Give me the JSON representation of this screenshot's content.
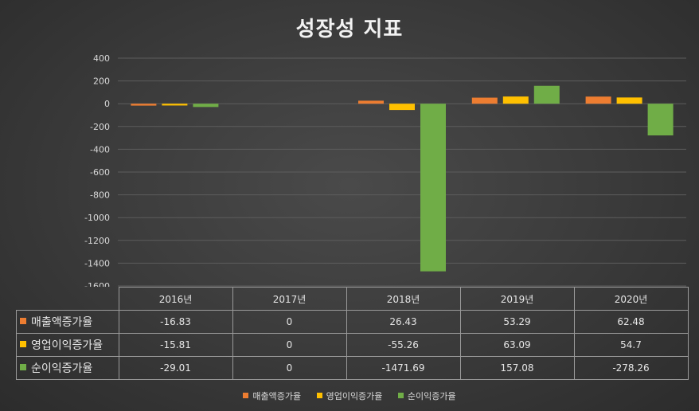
{
  "chart_data": {
    "type": "bar",
    "title": "성장성 지표",
    "categories": [
      "2016년",
      "2017년",
      "2018년",
      "2019년",
      "2020년"
    ],
    "series": [
      {
        "name": "매출액증가율",
        "color": "#ed7d31",
        "values": [
          -16.83,
          0,
          26.43,
          53.29,
          62.48
        ]
      },
      {
        "name": "영업이익증가율",
        "color": "#ffc000",
        "values": [
          -15.81,
          0,
          -55.26,
          63.09,
          54.7
        ]
      },
      {
        "name": "순이익증가율",
        "color": "#70ad47",
        "values": [
          -29.01,
          0,
          -1471.69,
          157.08,
          -278.26
        ]
      }
    ],
    "y_ticks": [
      "400",
      "200",
      "0",
      "-200",
      "-400",
      "-600",
      "-800",
      "-1000",
      "-1200",
      "-1400",
      "-1600"
    ],
    "ylim": [
      -1600,
      400
    ],
    "grid": true,
    "legend_position": "bottom",
    "data_table": {
      "rows": [
        [
          "-16.83",
          "0",
          "26.43",
          "53.29",
          "62.48"
        ],
        [
          "-15.81",
          "0",
          "-55.26",
          "63.09",
          "54.7"
        ],
        [
          "-29.01",
          "0",
          "-1471.69",
          "157.08",
          "-278.26"
        ]
      ]
    }
  }
}
